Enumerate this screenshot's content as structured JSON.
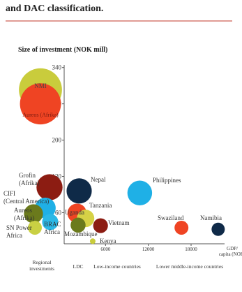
{
  "chart_data": {
    "type": "bubble",
    "title": "and DAC classification.",
    "y_label": "Size of investment (NOK mill)",
    "x_label": "GDP/ capita (NOK)",
    "xlim": [
      0,
      22500
    ],
    "xticks": [
      6000,
      12000,
      18000
    ],
    "ylim": [
      0,
      345
    ],
    "yticks": [
      60,
      130,
      200,
      270,
      340
    ],
    "groups": [
      "Regional investments",
      "LDC",
      "Low-income countries",
      "Lower middle-income countries"
    ],
    "series": [
      {
        "name": "Regional investments",
        "points": [
          {
            "label": "NMI",
            "y": 297,
            "color": "#c9cc3c"
          },
          {
            "label": "Aureos (Afrika)",
            "y": 270,
            "color": "#ef4423"
          },
          {
            "label": "Grofin (Afrika)",
            "y": 109,
            "color": "#8c1c12"
          },
          {
            "label": "CIFI (Central America)",
            "y": 69,
            "color": "#1fb0e6"
          },
          {
            "label": "Aureos (Afrika)",
            "y": 58,
            "color": "#6b7a1c"
          },
          {
            "label": "SN Power Africa",
            "y": 31,
            "color": "#c9d043"
          },
          {
            "label": "BRAC Africa",
            "y": 42,
            "color": "#2bb8e6"
          }
        ]
      },
      {
        "name": "Countries",
        "points": [
          {
            "label": "Nepal",
            "x": 2300,
            "y": 102,
            "color": "#0f2a48"
          },
          {
            "label": "Uganda",
            "x": 2000,
            "y": 59,
            "color": "#ef4423"
          },
          {
            "label": "Tanzania",
            "x": 3200,
            "y": 49,
            "color": "#d6d246"
          },
          {
            "label": "Mozambique",
            "x": 2150,
            "y": 36,
            "color": "#6b7a1c"
          },
          {
            "label": "Vietnam",
            "x": 5300,
            "y": 35,
            "color": "#8c1c12"
          },
          {
            "label": "Kenya",
            "x": 4200,
            "y": 5,
            "color": "#c9cc3c"
          },
          {
            "label": "Philippines",
            "x": 10800,
            "y": 98,
            "color": "#1fb0e6"
          },
          {
            "label": "Swaziland",
            "x": 16650,
            "y": 31,
            "color": "#ef4423"
          },
          {
            "label": "Namibia",
            "x": 21800,
            "y": 28,
            "color": "#0f2a48"
          }
        ]
      }
    ]
  }
}
